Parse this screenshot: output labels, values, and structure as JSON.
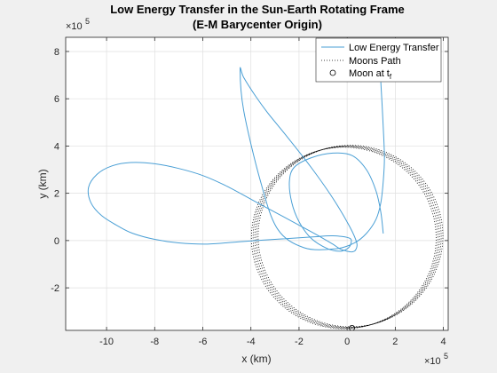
{
  "chart_data": {
    "type": "line",
    "title": "Low Energy Transfer in the Sun-Earth Rotating Frame",
    "subtitle": "(E-M Barycenter Origin)",
    "xlabel": "x (km)",
    "ylabel": "y (km)",
    "x_exponent": {
      "base": "×10",
      "power": "5"
    },
    "y_exponent": {
      "base": "×10",
      "power": "5"
    },
    "xlim": [
      -11.7,
      4.2
    ],
    "ylim": [
      -3.8,
      8.6
    ],
    "scale_factor": 100000,
    "xticks": [
      -10,
      -8,
      -6,
      -4,
      -2,
      0,
      2,
      4
    ],
    "yticks": [
      -2,
      0,
      2,
      4,
      6,
      8
    ],
    "grid": true,
    "legend_position": "top-right",
    "legend": [
      {
        "label": "Low Energy Transfer",
        "style": "solid line",
        "color": "#4a9fd5"
      },
      {
        "label": "Moons Path",
        "style": "dotted line",
        "color": "#000000"
      },
      {
        "label": "Moon at t",
        "label_sub": "f",
        "style": "circle marker",
        "color": "#000000"
      }
    ],
    "series": [
      {
        "name": "Low Energy Transfer",
        "color": "#4a9fd5",
        "x": [
          1.4,
          1.45,
          1.5,
          1.55,
          1.5,
          1.4,
          1.2,
          0.8,
          0.3,
          -0.5,
          -1.8,
          -2.9,
          -3.6,
          -4.3,
          -4.45,
          -4.3,
          -3.8,
          -3.3,
          -2.5,
          -1.5,
          -0.6,
          0.1,
          0.4,
          0.35,
          0.2,
          0.0,
          -0.3,
          -0.6,
          -1.1,
          -2.0,
          -3.0,
          -4.0,
          -5.0,
          -6.0,
          -7.0,
          -8.0,
          -9.0,
          -9.8,
          -10.4,
          -10.75,
          -10.65,
          -10.2,
          -9.5,
          -8.9,
          -8.0,
          -7.0,
          -5.8,
          -4.5,
          -3.0,
          -1.5,
          -0.6,
          0.1,
          0.15,
          0.0,
          -0.3,
          -0.8,
          -1.5,
          -2.0,
          -2.3,
          -2.4,
          -2.2,
          -1.5,
          -0.6,
          0.2,
          0.8,
          1.2,
          1.4,
          1.5
        ],
        "y": [
          6.7,
          5.8,
          4.8,
          3.5,
          2.5,
          1.6,
          0.9,
          0.3,
          -0.1,
          -0.35,
          -0.3,
          0.5,
          2.5,
          5.5,
          7.25,
          6.9,
          6.1,
          5.4,
          4.4,
          3.1,
          1.8,
          0.6,
          -0.1,
          -0.4,
          -0.48,
          -0.45,
          -0.35,
          -0.15,
          0.15,
          0.65,
          1.2,
          1.75,
          2.3,
          2.75,
          3.05,
          3.25,
          3.3,
          3.15,
          2.8,
          2.25,
          1.6,
          1.05,
          0.6,
          0.3,
          0.05,
          -0.1,
          -0.15,
          -0.05,
          0.05,
          0.15,
          0.2,
          0.1,
          -0.15,
          -0.35,
          -0.45,
          -0.35,
          0.1,
          0.8,
          1.6,
          2.5,
          3.1,
          3.5,
          3.7,
          3.6,
          3.0,
          2.1,
          1.2,
          0.3
        ]
      },
      {
        "name": "Moons Path",
        "color": "#000000",
        "center": [
          0.0,
          0.15
        ],
        "radius": 3.84,
        "loops": 5
      }
    ],
    "markers": [
      {
        "name": "Moon at tf",
        "x": 0.2,
        "y": -3.7
      }
    ]
  }
}
